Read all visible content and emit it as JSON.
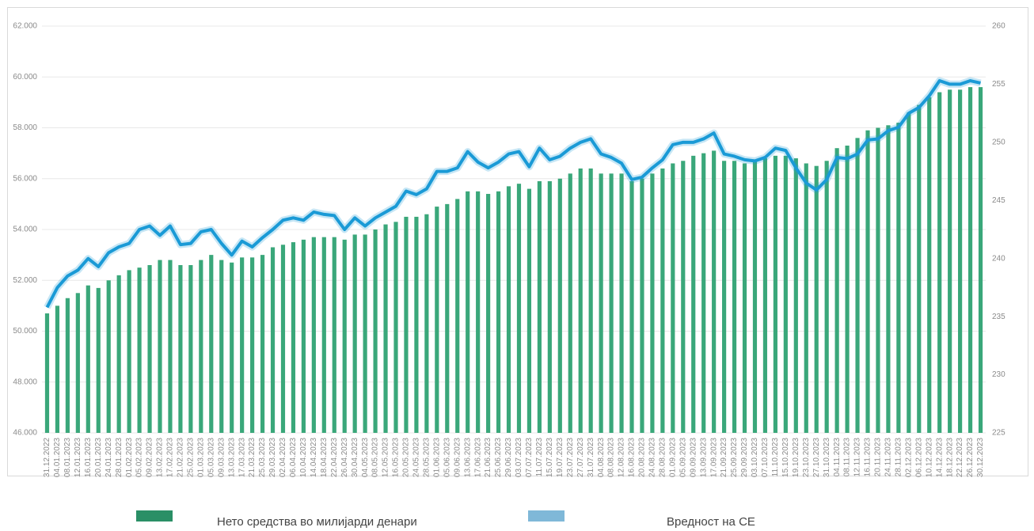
{
  "chart_data": {
    "type": "combo",
    "categories": [
      "31.12.2022",
      "04.01.2023",
      "08.01.2023",
      "12.01.2023",
      "16.01.2023",
      "20.01.2023",
      "24.01.2023",
      "28.01.2023",
      "01.02.2023",
      "05.02.2023",
      "09.02.2023",
      "13.02.2023",
      "17.02.2023",
      "21.02.2023",
      "25.02.2023",
      "01.03.2023",
      "05.03.2023",
      "09.03.2023",
      "13.03.2023",
      "17.03.2023",
      "21.03.2023",
      "25.03.2023",
      "29.03.2023",
      "02.04.2023",
      "06.04.2023",
      "10.04.2023",
      "14.04.2023",
      "18.04.2023",
      "22.04.2023",
      "26.04.2023",
      "30.04.2023",
      "04.05.2023",
      "08.05.2023",
      "12.05.2023",
      "16.05.2023",
      "20.05.2023",
      "24.05.2023",
      "28.05.2023",
      "01.06.2023",
      "05.06.2023",
      "09.06.2023",
      "13.06.2023",
      "17.06.2023",
      "21.06.2023",
      "25.06.2023",
      "29.06.2023",
      "03.07.2023",
      "07.07.2023",
      "11.07.2023",
      "15.07.2023",
      "19.07.2023",
      "23.07.2023",
      "27.07.2023",
      "31.07.2023",
      "04.08.2023",
      "08.08.2023",
      "12.08.2023",
      "16.08.2023",
      "20.08.2023",
      "24.08.2023",
      "28.08.2023",
      "01.09.2023",
      "05.09.2023",
      "09.09.2023",
      "13.09.2023",
      "17.09.2023",
      "21.09.2023",
      "25.09.2023",
      "29.09.2023",
      "03.10.2023",
      "07.10.2023",
      "11.10.2023",
      "15.10.2023",
      "19.10.2023",
      "23.10.2023",
      "27.10.2023",
      "31.10.2023",
      "04.11.2023",
      "08.11.2023",
      "12.11.2023",
      "16.11.2023",
      "20.11.2023",
      "24.11.2023",
      "28.11.2023",
      "02.12.2023",
      "06.12.2023",
      "10.12.2023",
      "14.12.2023",
      "18.12.2023",
      "22.12.2023",
      "26.12.2023",
      "30.12.2023"
    ],
    "series": [
      {
        "name": "Нето средства во милијарди денари",
        "type": "bar",
        "color": "#3aa77a",
        "values": [
          50700,
          51000,
          51300,
          51500,
          51800,
          51700,
          52000,
          52200,
          52400,
          52500,
          52600,
          52800,
          52800,
          52600,
          52600,
          52800,
          53000,
          52800,
          52700,
          52900,
          52900,
          53000,
          53300,
          53400,
          53500,
          53600,
          53700,
          53700,
          53700,
          53600,
          53800,
          53800,
          54000,
          54200,
          54300,
          54500,
          54500,
          54600,
          54900,
          55000,
          55200,
          55500,
          55500,
          55400,
          55500,
          55700,
          55800,
          55600,
          55900,
          55900,
          56000,
          56200,
          56400,
          56400,
          56200,
          56200,
          56200,
          55900,
          56000,
          56200,
          56400,
          56600,
          56700,
          56900,
          57000,
          57100,
          56700,
          56700,
          56600,
          56700,
          56800,
          56900,
          56900,
          56800,
          56600,
          56500,
          56700,
          57200,
          57300,
          57600,
          57900,
          58000,
          58100,
          58200,
          58600,
          58900,
          59200,
          59400,
          59500,
          59500,
          59600,
          59600
        ]
      },
      {
        "name": "Вредност на СЕ",
        "type": "line",
        "axis": "y2",
        "color": "#1a9ad6",
        "values": [
          235.8,
          237.5,
          238.5,
          239,
          240,
          239.3,
          240.5,
          241,
          241.3,
          242.5,
          242.8,
          242,
          242.8,
          241.2,
          241.3,
          242.3,
          242.5,
          241.3,
          240.3,
          241.5,
          241,
          241.8,
          242.5,
          243.3,
          243.5,
          243.3,
          244,
          243.8,
          243.7,
          242.5,
          243.5,
          242.8,
          243.5,
          244,
          244.5,
          245.8,
          245.5,
          246,
          247.5,
          247.5,
          247.8,
          249.2,
          248.3,
          247.8,
          248.3,
          249,
          249.2,
          247.9,
          249.5,
          248.5,
          248.8,
          249.5,
          250,
          250.3,
          249,
          248.7,
          248.2,
          246.8,
          247,
          247.8,
          248.5,
          249.8,
          250,
          250,
          250.3,
          250.8,
          249,
          248.8,
          248.5,
          248.4,
          248.7,
          249.5,
          249.3,
          247.8,
          246.5,
          245.9,
          246.8,
          248.7,
          248.6,
          249,
          250.2,
          250.3,
          251,
          251.3,
          252.5,
          253,
          254,
          255.3,
          255,
          255,
          255.3,
          255.1
        ]
      }
    ],
    "ylim": [
      46000,
      62000
    ],
    "yticks": [
      {
        "value": 46000,
        "label": "46.000"
      },
      {
        "value": 48000,
        "label": "48.000"
      },
      {
        "value": 50000,
        "label": "50.000"
      },
      {
        "value": 52000,
        "label": "52.000"
      },
      {
        "value": 54000,
        "label": "54.000"
      },
      {
        "value": 56000,
        "label": "56.000"
      },
      {
        "value": 58000,
        "label": "58.000"
      },
      {
        "value": 60000,
        "label": "60.000"
      },
      {
        "value": 62000,
        "label": "62.000"
      }
    ],
    "y2lim": [
      225,
      260
    ],
    "y2ticks": [
      225,
      230,
      235,
      240,
      245,
      250,
      255,
      260
    ],
    "grid": true
  }
}
